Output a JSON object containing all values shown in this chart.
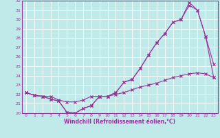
{
  "title": "",
  "xlabel": "Windchill (Refroidissement éolien,°C)",
  "bg_color": "#c0eaea",
  "line_color": "#993399",
  "grid_color": "#ffffff",
  "xlim": [
    -0.5,
    23.5
  ],
  "ylim": [
    20,
    32
  ],
  "yticks": [
    20,
    21,
    22,
    23,
    24,
    25,
    26,
    27,
    28,
    29,
    30,
    31,
    32
  ],
  "xticks": [
    0,
    1,
    2,
    3,
    4,
    5,
    6,
    7,
    8,
    9,
    10,
    11,
    12,
    13,
    14,
    15,
    16,
    17,
    18,
    19,
    20,
    21,
    22,
    23
  ],
  "x": [
    0,
    1,
    2,
    3,
    4,
    5,
    6,
    7,
    8,
    9,
    10,
    11,
    12,
    13,
    14,
    15,
    16,
    17,
    18,
    19,
    20,
    21,
    22,
    23
  ],
  "line1": [
    22.2,
    21.9,
    21.8,
    21.5,
    21.3,
    20.1,
    20.0,
    20.5,
    20.8,
    21.8,
    21.8,
    22.2,
    23.3,
    23.6,
    24.8,
    26.2,
    27.5,
    28.5,
    29.7,
    30.0,
    31.5,
    31.0,
    28.2,
    25.2
  ],
  "line2": [
    22.2,
    21.9,
    21.8,
    21.5,
    21.3,
    20.1,
    20.0,
    20.5,
    20.8,
    21.8,
    21.8,
    22.2,
    23.3,
    23.6,
    24.8,
    26.2,
    27.5,
    28.5,
    29.7,
    30.0,
    31.8,
    31.0,
    28.2,
    23.8
  ],
  "line3": [
    22.2,
    21.9,
    21.8,
    21.8,
    21.4,
    21.2,
    21.2,
    21.4,
    21.8,
    21.8,
    21.8,
    22.0,
    22.2,
    22.5,
    22.8,
    23.0,
    23.2,
    23.5,
    23.8,
    24.0,
    24.2,
    24.3,
    24.2,
    23.8
  ]
}
